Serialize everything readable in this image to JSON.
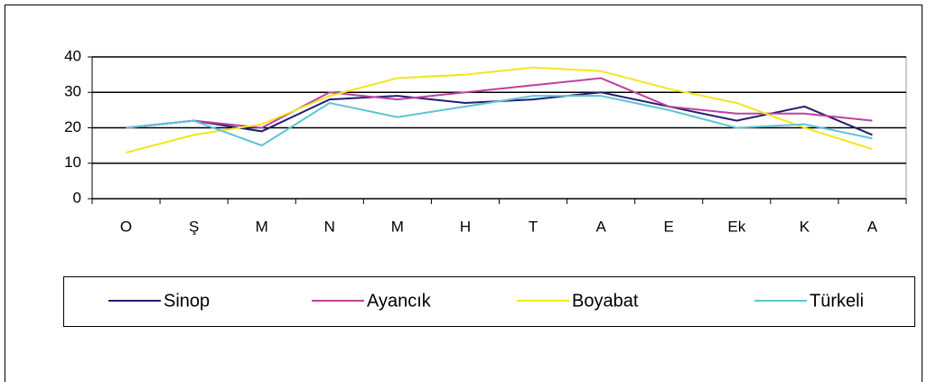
{
  "chart_data": {
    "type": "line",
    "categories": [
      "O",
      "Ş",
      "M",
      "N",
      "M",
      "H",
      "T",
      "A",
      "E",
      "Ek",
      "K",
      "A"
    ],
    "series": [
      {
        "name": "Sinop",
        "color": "#1f1f70",
        "values": [
          20,
          22,
          19,
          28,
          29,
          27,
          28,
          30,
          26,
          22,
          26,
          18
        ]
      },
      {
        "name": "Ayancık",
        "color": "#c040a0",
        "values": [
          20,
          22,
          20,
          30,
          28,
          30,
          32,
          34,
          26,
          24,
          24,
          22
        ]
      },
      {
        "name": "Boyabat",
        "color": "#f2e61e",
        "values": [
          13,
          18,
          21,
          29,
          34,
          35,
          37,
          36,
          31,
          27,
          20,
          14
        ]
      },
      {
        "name": "Türkeli",
        "color": "#5ec4d6",
        "values": [
          20,
          22,
          15,
          27,
          23,
          26,
          29,
          29,
          25,
          20,
          21,
          17
        ]
      }
    ],
    "ylim": [
      0,
      40
    ],
    "yticks": [
      0,
      10,
      20,
      30,
      40
    ],
    "grid": true
  }
}
